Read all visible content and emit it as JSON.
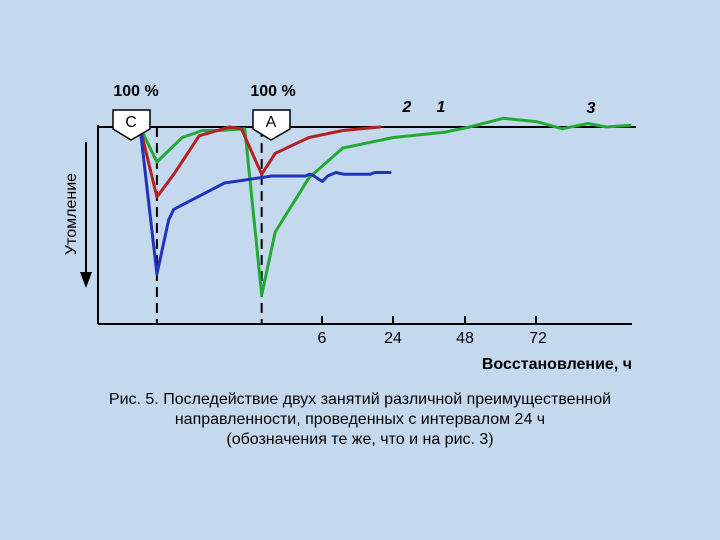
{
  "chart_data": {
    "type": "line",
    "ylabel": "Утомление",
    "xlabel": "Восстановление, ч",
    "x_ticks": [
      "6",
      "24",
      "48",
      "72"
    ],
    "level_labels": [
      "100 %",
      "100 %"
    ],
    "session_markers": [
      "С",
      "А"
    ],
    "curve_labels": [
      "2",
      "1",
      "3"
    ],
    "colors": {
      "red": "#b52025",
      "blue": "#2233bb",
      "green": "#22aa33",
      "axis": "#000000",
      "marker_fill": "#ffffff",
      "background": "#c4d9ee"
    },
    "series": [
      {
        "label": "1",
        "color": "#2233bb",
        "points": [
          [
            0,
            0
          ],
          [
            10,
            84
          ],
          [
            17,
            53
          ],
          [
            20,
            47
          ],
          [
            50,
            32
          ],
          [
            78,
            28
          ],
          [
            95,
            28
          ],
          [
            98,
            28
          ],
          [
            100,
            27
          ],
          [
            101,
            27
          ],
          [
            103,
            28
          ],
          [
            106,
            30
          ],
          [
            108,
            31
          ],
          [
            111,
            28
          ],
          [
            116,
            26
          ],
          [
            121,
            27
          ],
          [
            126,
            27
          ],
          [
            130,
            27
          ],
          [
            136,
            27
          ],
          [
            139,
            26
          ],
          [
            141,
            26
          ],
          [
            143,
            26
          ],
          [
            144,
            26
          ],
          [
            145,
            26
          ],
          [
            146,
            26
          ],
          [
            147,
            26
          ],
          [
            148,
            26
          ]
        ]
      },
      {
        "label": "2",
        "color": "#b52025",
        "points": [
          [
            0,
            0
          ],
          [
            10,
            40
          ],
          [
            20,
            27
          ],
          [
            35,
            5
          ],
          [
            53,
            0
          ],
          [
            60,
            1
          ],
          [
            72,
            27
          ],
          [
            80,
            15
          ],
          [
            100,
            6
          ],
          [
            120,
            2
          ],
          [
            142,
            0
          ]
        ]
      },
      {
        "label": "3",
        "color": "#22aa33",
        "points": [
          [
            0,
            0
          ],
          [
            10,
            20
          ],
          [
            25,
            6
          ],
          [
            37,
            2
          ],
          [
            47,
            2
          ],
          [
            62,
            1
          ],
          [
            72,
            96
          ],
          [
            80,
            60
          ],
          [
            100,
            29
          ],
          [
            120,
            12
          ],
          [
            150,
            6
          ],
          [
            180,
            3
          ],
          [
            195,
            0
          ],
          [
            215,
            -5
          ],
          [
            235,
            -3
          ],
          [
            250,
            1
          ],
          [
            265,
            -2
          ],
          [
            276,
            0
          ],
          [
            290,
            -1
          ]
        ]
      }
    ],
    "verticals": [
      10,
      72
    ],
    "xlim": [
      0,
      290
    ],
    "ylim": [
      -10,
      100
    ],
    "caption": [
      "Рис. 5. Последействие двух занятий различной преимущественной",
      "направленности, проведенных с интервалом 24 ч",
      "(обозначения те же, что и на рис. 3)"
    ]
  }
}
